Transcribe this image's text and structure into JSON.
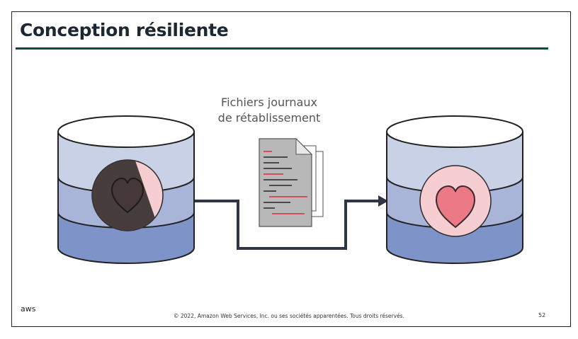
{
  "slide": {
    "title": "Conception résiliente",
    "logs_label_line1": "Fichiers journaux",
    "logs_label_line2": "de rétablissement",
    "footer_logo": "aws",
    "footer_text": "© 2022, Amazon Web Services, Inc. ou ses sociétés apparentées. Tous droits réservés.",
    "page_number": "52"
  },
  "colors": {
    "title_rule": "#0d4a44",
    "db_top_band": "#c9d1e6",
    "db_middle_band": "#a9b5d8",
    "db_bottom_band": "#7e93c8",
    "heart": "#ec7a86",
    "heart_circle": "#f6cdd1",
    "failure_overlay": "#3d3535",
    "connector": "#2f3447"
  }
}
